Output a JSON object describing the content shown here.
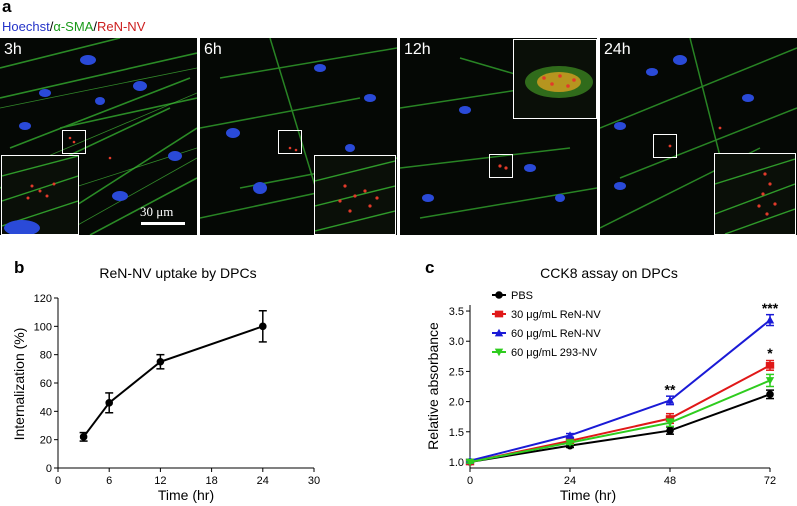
{
  "figure": {
    "panel_a_letter": "a",
    "panel_b_letter": "b",
    "panel_c_letter": "c",
    "legend": {
      "hoechst": "Hoechst",
      "slash1": "/",
      "sma": "α-SMA",
      "slash2": "/",
      "renv": "ReN-NV",
      "colors": {
        "hoechst": "#2433c8",
        "sma": "#1a9a1a",
        "renv": "#cc1e1e"
      }
    },
    "micrographs": [
      {
        "label": "3h"
      },
      {
        "label": "6h"
      },
      {
        "label": "12h"
      },
      {
        "label": "24h"
      }
    ],
    "scale_bar_label": "30 μm"
  },
  "chart_data": [
    {
      "type": "line",
      "title": "ReN-NV uptake by DPCs",
      "xlabel": "Time (hr)",
      "ylabel": "Internalization (%)",
      "xlim": [
        0,
        30
      ],
      "ylim": [
        0,
        120
      ],
      "xticks": [
        0,
        6,
        12,
        18,
        24,
        30
      ],
      "yticks": [
        0,
        20,
        40,
        60,
        80,
        100,
        120
      ],
      "series": [
        {
          "name": "ReN-NV",
          "x": [
            3,
            6,
            12,
            24
          ],
          "y": [
            22,
            46,
            75,
            100
          ],
          "err": [
            3,
            7,
            5,
            11
          ],
          "color": "#000000"
        }
      ]
    },
    {
      "type": "line",
      "title": "CCK8 assay on DPCs",
      "xlabel": "Time (hr)",
      "ylabel": "Relative absorbance",
      "xlim": [
        0,
        72
      ],
      "ylim": [
        0.9,
        3.6
      ],
      "xticks": [
        0,
        24,
        48,
        72
      ],
      "yticks": [
        1.0,
        1.5,
        2.0,
        2.5,
        3.0,
        3.5
      ],
      "series": [
        {
          "name": "PBS",
          "x": [
            0,
            24,
            48,
            72
          ],
          "y": [
            1.0,
            1.27,
            1.52,
            2.12
          ],
          "err": [
            0.02,
            0.03,
            0.06,
            0.07
          ],
          "color": "#000000",
          "marker": "circle"
        },
        {
          "name": "30 μg/mL ReN-NV",
          "x": [
            0,
            24,
            48,
            72
          ],
          "y": [
            1.0,
            1.35,
            1.72,
            2.6
          ],
          "err": [
            0.02,
            0.03,
            0.08,
            0.08
          ],
          "color": "#e01818",
          "marker": "square"
        },
        {
          "name": "60 μg/mL ReN-NV",
          "x": [
            0,
            24,
            48,
            72
          ],
          "y": [
            1.02,
            1.44,
            2.02,
            3.35
          ],
          "err": [
            0.02,
            0.03,
            0.07,
            0.09
          ],
          "color": "#1a1ad6",
          "marker": "triangle-up"
        },
        {
          "name": "60 μg/mL 293-NV",
          "x": [
            0,
            24,
            48,
            72
          ],
          "y": [
            1.0,
            1.32,
            1.65,
            2.35
          ],
          "err": [
            0.02,
            0.03,
            0.06,
            0.1
          ],
          "color": "#2ecc1e",
          "marker": "triangle-down"
        }
      ],
      "annotations": [
        {
          "x": 48,
          "y": 2.12,
          "text": "**"
        },
        {
          "x": 72,
          "y": 3.47,
          "text": "***"
        },
        {
          "x": 72,
          "y": 2.72,
          "text": "*"
        }
      ]
    }
  ]
}
